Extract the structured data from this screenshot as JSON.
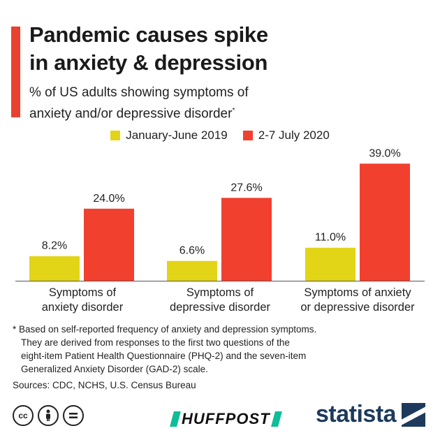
{
  "title_line1": "Pandemic causes spike",
  "title_line2": "in anxiety & depression",
  "subtitle_line1": "% of US adults showing symptoms of",
  "subtitle_line2": "anxiety and/or depressive disorder",
  "subtitle_mark": "*",
  "colors": {
    "accent": "#e8412f",
    "series_2019": "#e2d417",
    "series_2020": "#f2402f",
    "brand_navy": "#1d3a5c",
    "huffpost_green": "#0dbe98"
  },
  "chart_data": {
    "type": "bar",
    "title": "Pandemic causes spike in anxiety & depression",
    "subtitle": "% of US adults showing symptoms of anxiety and/or depressive disorder*",
    "categories": [
      [
        "Symptoms of",
        "anxiety disorder"
      ],
      [
        "Symptoms of",
        "depressive disorder"
      ],
      [
        "Symptoms of anxiety",
        "or depressive disorder"
      ]
    ],
    "series": [
      {
        "name": "January-June 2019",
        "values": [
          8.2,
          6.6,
          11.0
        ],
        "labels": [
          "8.2%",
          "6.6%",
          "11.0%"
        ]
      },
      {
        "name": "2-7 July 2020",
        "values": [
          24.0,
          27.6,
          39.0
        ],
        "labels": [
          "24.0%",
          "27.6%",
          "39.0%"
        ]
      }
    ],
    "ylim": [
      0,
      40
    ],
    "grid": false,
    "legend_position": "top-center"
  },
  "footnote_line1": "* Based on self-reported frequency of anxiety and depression symptoms.",
  "footnote_line2": "They are derived from responses to the first two questions of the",
  "footnote_line3": "eight-item Patient Health Questionnaire (PHQ-2) and the seven-item",
  "footnote_line4": "Generalized Anxiety Disorder (GAD-2) scale.",
  "sources": "Sources: CDC, NCHS, U.S. Census Bureau",
  "license_icons": [
    "cc",
    "by",
    "nd"
  ],
  "huffpost_brand": "HUFFPOST",
  "statista_brand": "statista"
}
